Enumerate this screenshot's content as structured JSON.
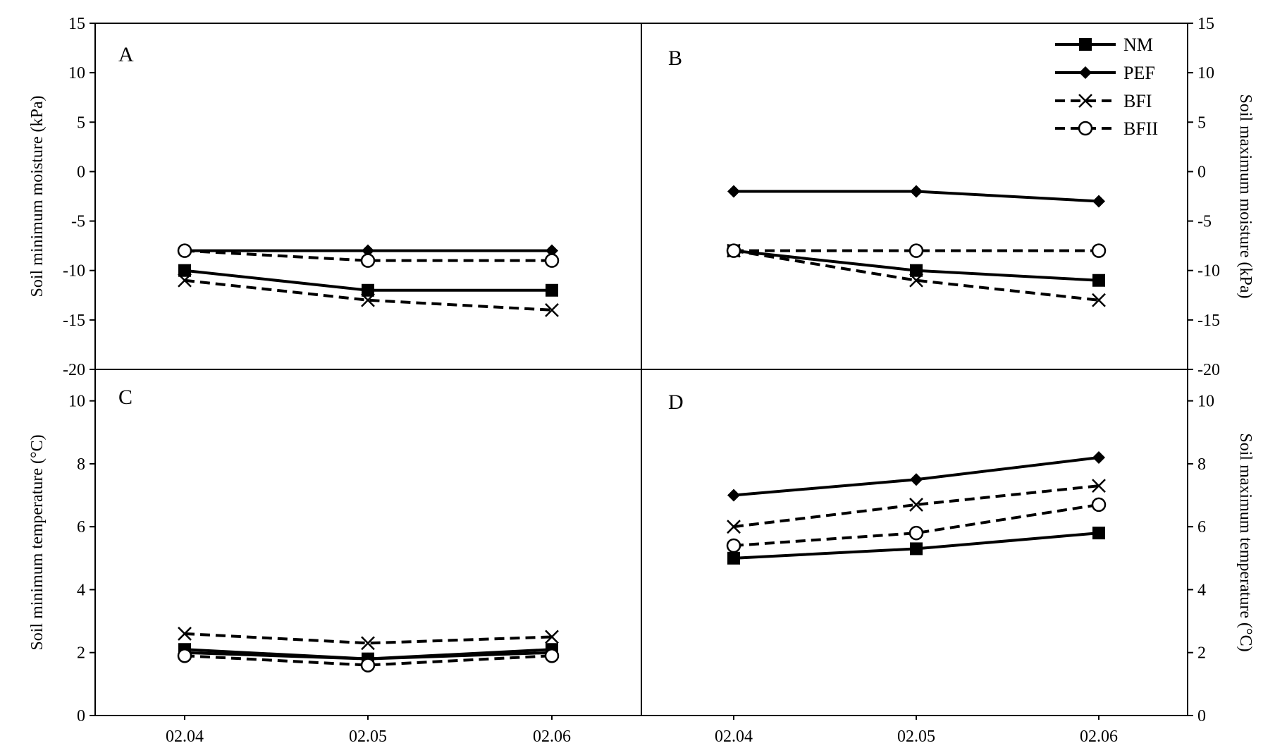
{
  "chart_data": [
    {
      "type": "line",
      "panel": "A",
      "categories": [
        "02.04",
        "02.05",
        "02.06"
      ],
      "ylabel": "Soil minimum moisture (kPa)",
      "ylim": [
        -20,
        15
      ],
      "yticks": [
        "15",
        "10",
        "5",
        "0",
        "-5",
        "-10",
        "-15",
        "-20"
      ],
      "series": [
        {
          "name": "NM",
          "values": [
            -10,
            -12,
            -12
          ]
        },
        {
          "name": "PEF",
          "values": [
            -8,
            -8,
            -8
          ]
        },
        {
          "name": "BFI",
          "values": [
            -11,
            -13,
            -14
          ]
        },
        {
          "name": "BFII",
          "values": [
            -8,
            -9,
            -9
          ]
        }
      ]
    },
    {
      "type": "line",
      "panel": "B",
      "categories": [
        "02.04",
        "02.05",
        "02.06"
      ],
      "ylabel": "Soil maximum moisture (kPa)",
      "ylim": [
        -20,
        15
      ],
      "yticks": [
        "15",
        "10",
        "5",
        "0",
        "-5",
        "-10",
        "-15",
        "-20"
      ],
      "series": [
        {
          "name": "NM",
          "values": [
            -8,
            -10,
            -11
          ]
        },
        {
          "name": "PEF",
          "values": [
            -2,
            -2,
            -3
          ]
        },
        {
          "name": "BFI",
          "values": [
            -8,
            -11,
            -13
          ]
        },
        {
          "name": "BFII",
          "values": [
            -8,
            -8,
            -8
          ]
        }
      ]
    },
    {
      "type": "line",
      "panel": "C",
      "categories": [
        "02.04",
        "02.05",
        "02.06"
      ],
      "ylabel": "Soil minimum temperature (°C)",
      "ylim": [
        0,
        11
      ],
      "yticks": [
        "10",
        "8",
        "6",
        "4",
        "2",
        "0"
      ],
      "series": [
        {
          "name": "NM",
          "values": [
            2.1,
            1.8,
            2.1
          ]
        },
        {
          "name": "PEF",
          "values": [
            2.0,
            1.8,
            2.0
          ]
        },
        {
          "name": "BFI",
          "values": [
            2.6,
            2.3,
            2.5
          ]
        },
        {
          "name": "BFII",
          "values": [
            1.9,
            1.6,
            1.9
          ]
        }
      ]
    },
    {
      "type": "line",
      "panel": "D",
      "categories": [
        "02.04",
        "02.05",
        "02.06"
      ],
      "ylabel": "Soil maximum temperature (°C)",
      "ylim": [
        0,
        11
      ],
      "yticks": [
        "10",
        "8",
        "6",
        "4",
        "2",
        "0"
      ],
      "series": [
        {
          "name": "NM",
          "values": [
            5.0,
            5.3,
            5.8
          ]
        },
        {
          "name": "PEF",
          "values": [
            7.0,
            7.5,
            8.2
          ]
        },
        {
          "name": "BFI",
          "values": [
            6.0,
            6.7,
            7.3
          ]
        },
        {
          "name": "BFII",
          "values": [
            5.4,
            5.8,
            6.7
          ]
        }
      ]
    }
  ],
  "legend": {
    "placement": "top-right of panel B",
    "entries": [
      {
        "name": "NM",
        "line": "solid",
        "marker": "square"
      },
      {
        "name": "PEF",
        "line": "solid",
        "marker": "diamond"
      },
      {
        "name": "BFI",
        "line": "dashed",
        "marker": "x"
      },
      {
        "name": "BFII",
        "line": "dashed",
        "marker": "circle"
      }
    ]
  },
  "colors": {
    "lines": "#000000",
    "background": "#ffffff"
  }
}
